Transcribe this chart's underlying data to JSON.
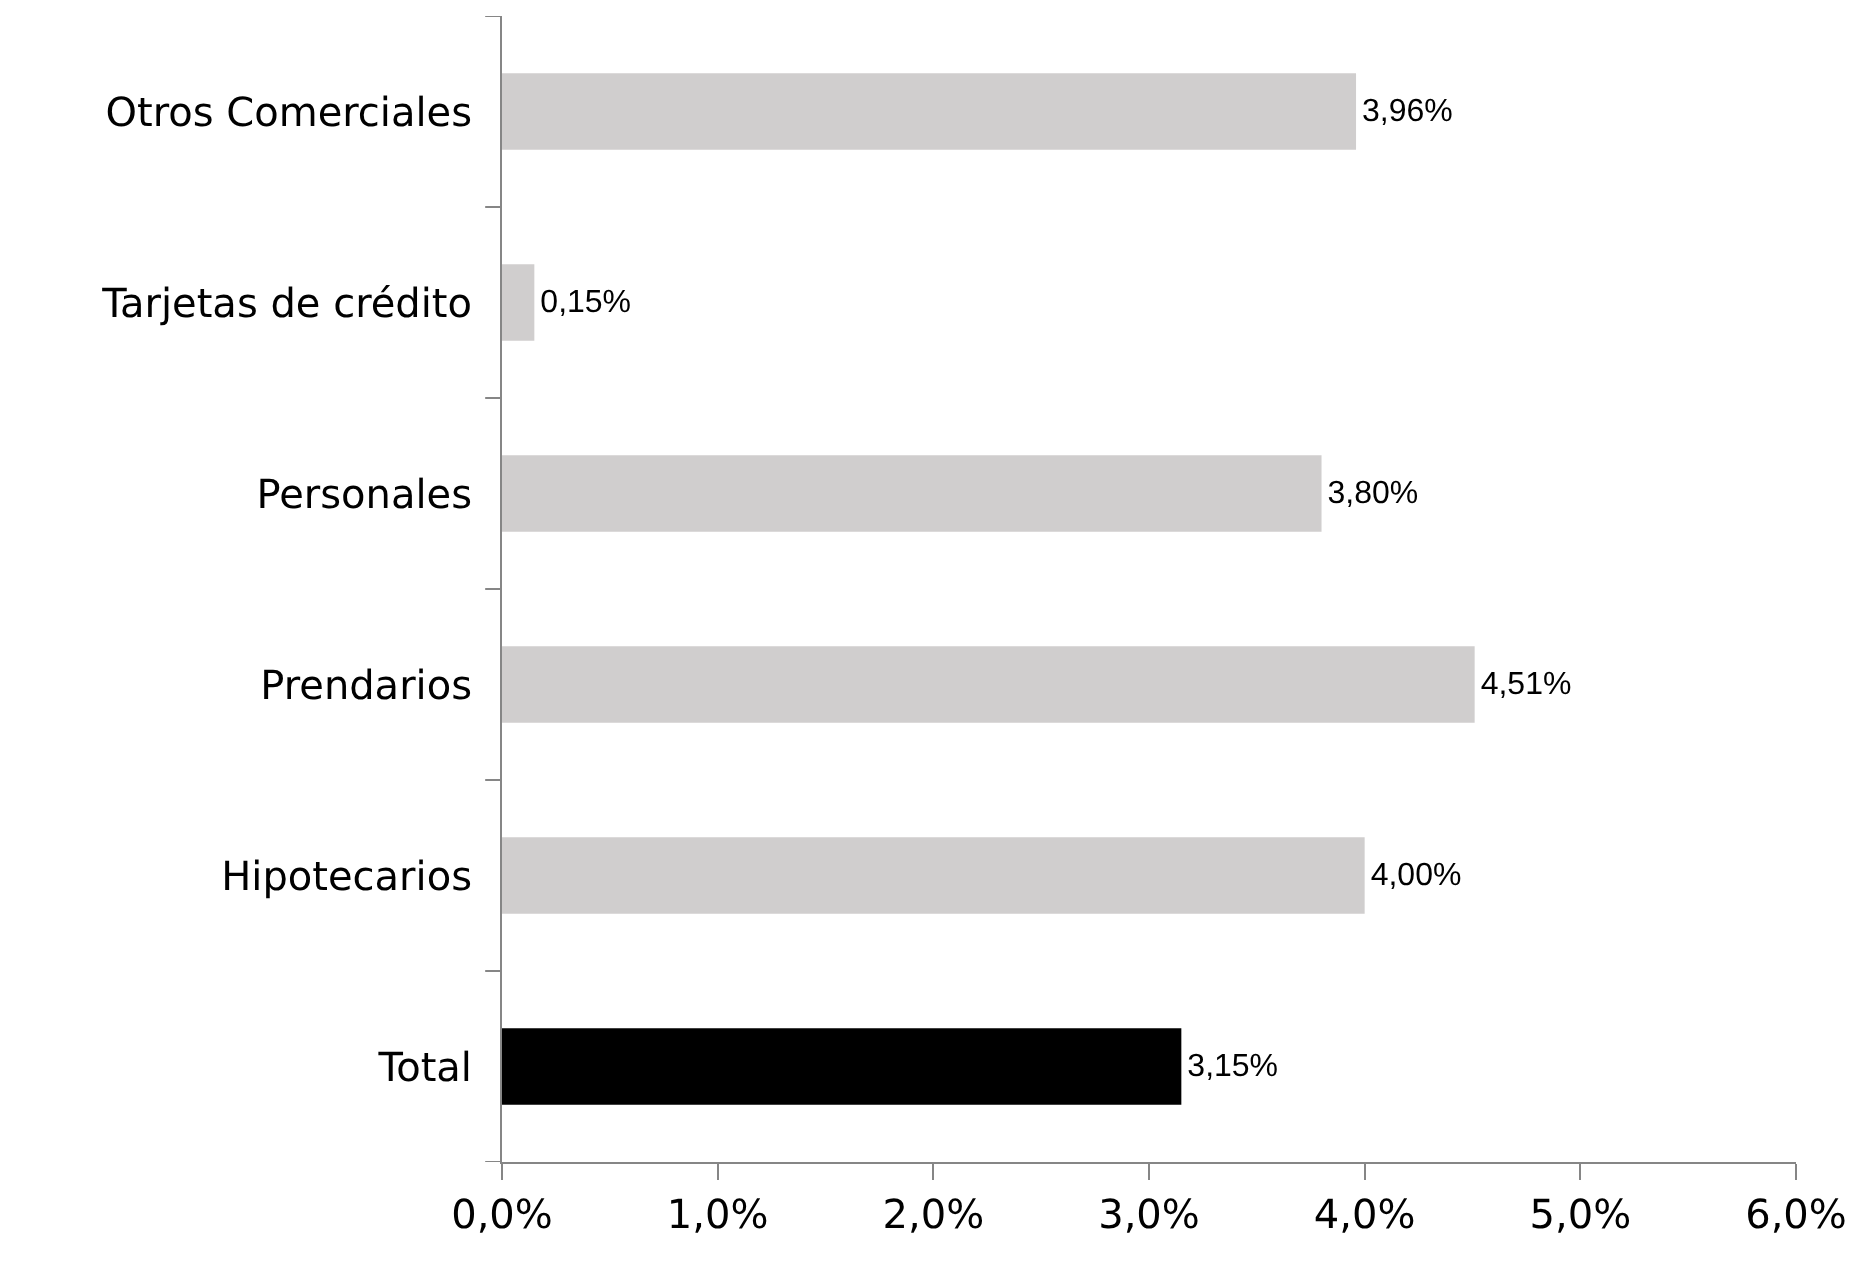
{
  "chart_data": {
    "type": "bar",
    "orientation": "horizontal",
    "categories": [
      "Otros Comerciales",
      "Tarjetas de crédito",
      "Personales",
      "Prendarios",
      "Hipotecarios",
      "Total"
    ],
    "values": [
      3.96,
      0.15,
      3.8,
      4.51,
      4.0,
      3.15
    ],
    "colors": [
      "#d0cece",
      "#d0cece",
      "#d0cece",
      "#d0cece",
      "#d0cece",
      "#000000"
    ],
    "value_labels": [
      "3,96%",
      "0,15%",
      "3,80%",
      "4,51%",
      "4,00%",
      "3,15%"
    ],
    "xlim": [
      0,
      6
    ],
    "xticks": [
      {
        "value": 0,
        "label": "0,0%"
      },
      {
        "value": 1,
        "label": "1,0%"
      },
      {
        "value": 2,
        "label": "2,0%"
      },
      {
        "value": 3,
        "label": "3,0%"
      },
      {
        "value": 4,
        "label": "4,0%"
      },
      {
        "value": 5,
        "label": "5,0%"
      },
      {
        "value": 6,
        "label": "6,0%"
      }
    ],
    "grid": false
  }
}
